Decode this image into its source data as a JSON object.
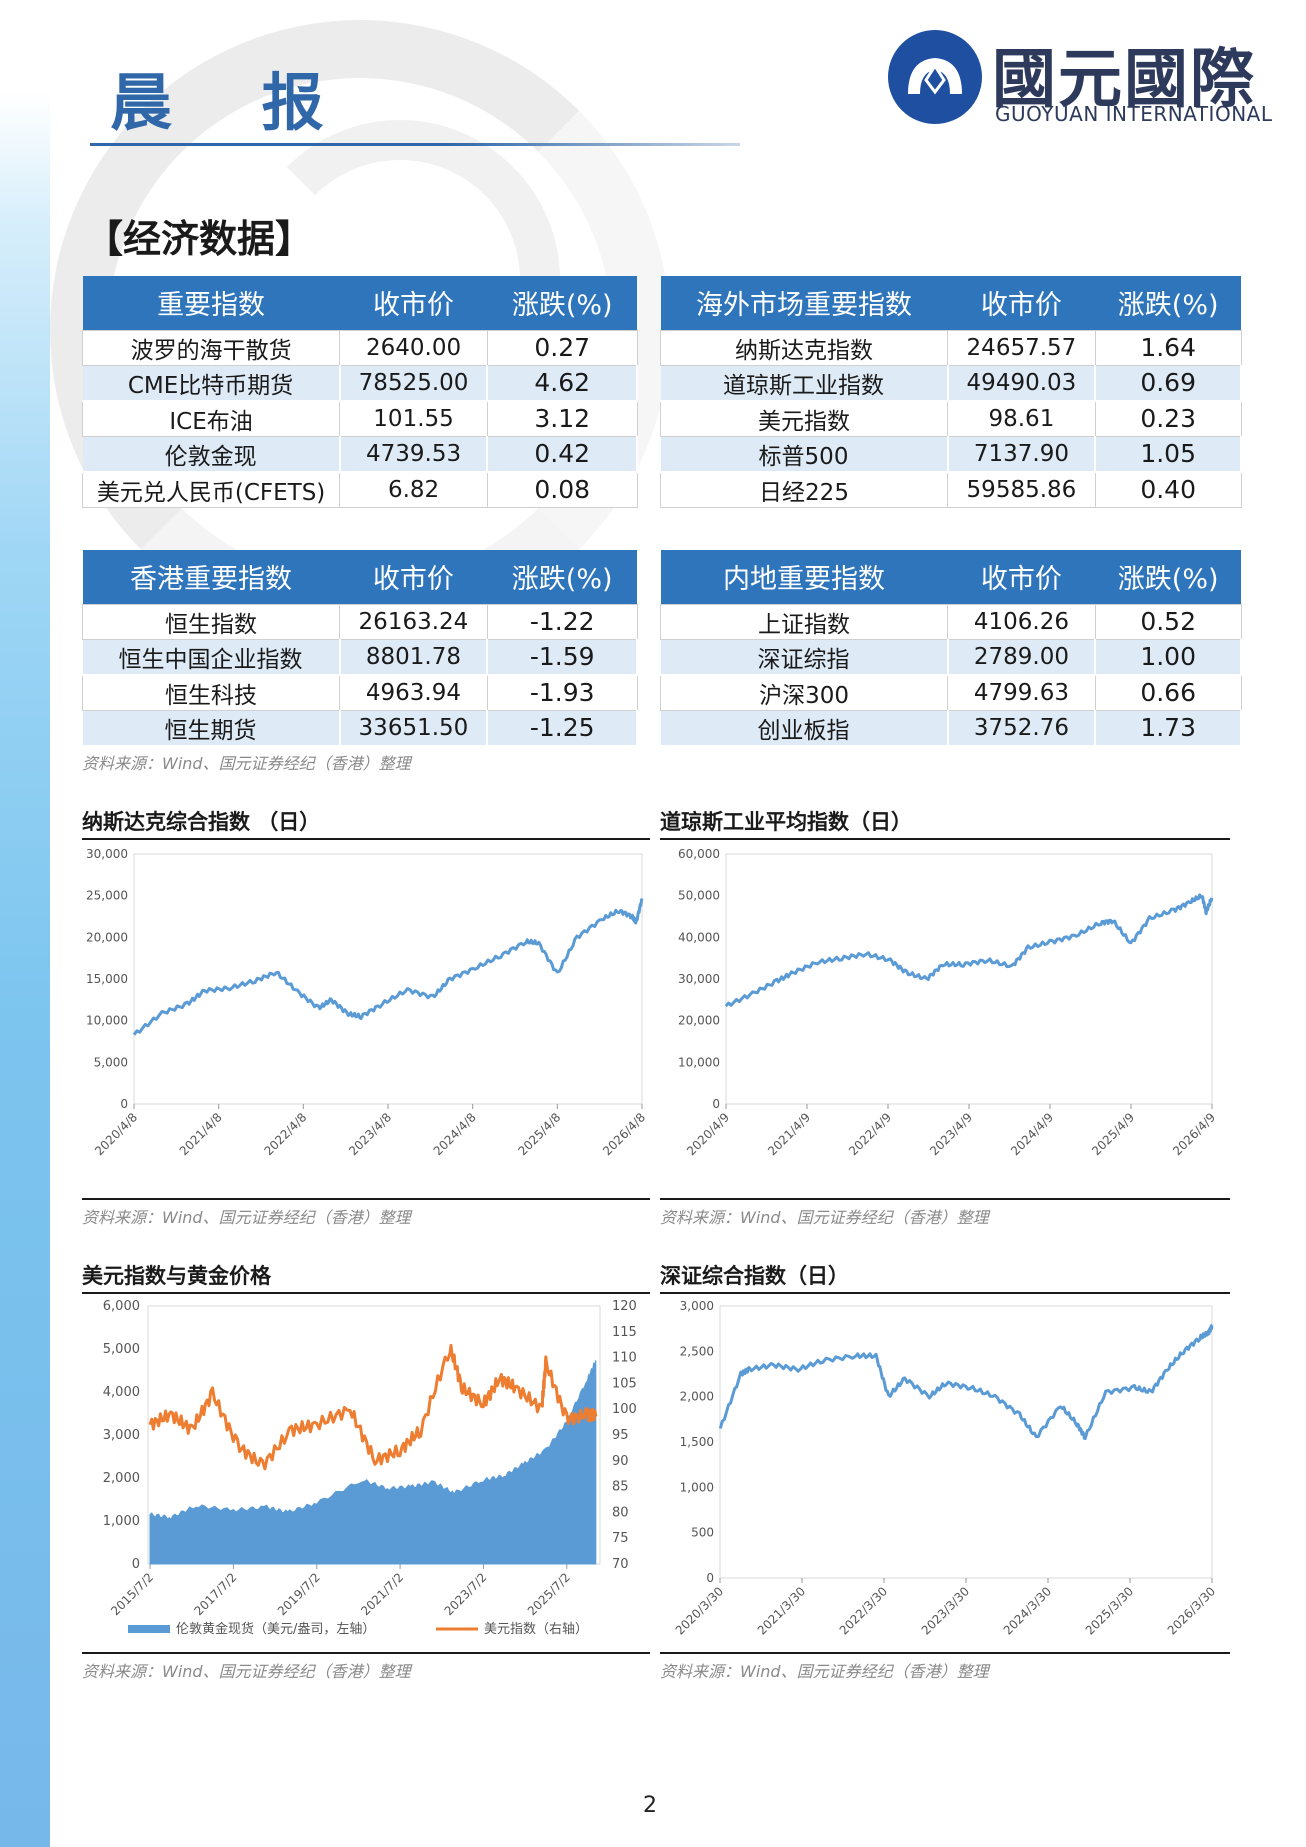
{
  "header": {
    "title": "晨 报",
    "logo_cn": "國元國際",
    "logo_en": "GUOYUAN INTERNATIONAL"
  },
  "section_title": "【经济数据】",
  "tables": [
    {
      "headers": [
        "重要指数",
        "收市价",
        "涨跌(%)"
      ],
      "rows": [
        [
          "波罗的海干散货",
          "2640.00",
          "0.27"
        ],
        [
          "CME比特币期货",
          "78525.00",
          "4.62"
        ],
        [
          "ICE布油",
          "101.55",
          "3.12"
        ],
        [
          "伦敦金现",
          "4739.53",
          "0.42"
        ],
        [
          "美元兑人民币(CFETS)",
          "6.82",
          "0.08"
        ]
      ]
    },
    {
      "headers": [
        "海外市场重要指数",
        "收市价",
        "涨跌(%)"
      ],
      "rows": [
        [
          "纳斯达克指数",
          "24657.57",
          "1.64"
        ],
        [
          "道琼斯工业指数",
          "49490.03",
          "0.69"
        ],
        [
          "美元指数",
          "98.61",
          "0.23"
        ],
        [
          "标普500",
          "7137.90",
          "1.05"
        ],
        [
          "日经225",
          "59585.86",
          "0.40"
        ]
      ]
    },
    {
      "headers": [
        "香港重要指数",
        "收市价",
        "涨跌(%)"
      ],
      "rows": [
        [
          "恒生指数",
          "26163.24",
          "-1.22"
        ],
        [
          "恒生中国企业指数",
          "8801.78",
          "-1.59"
        ],
        [
          "恒生科技",
          "4963.94",
          "-1.93"
        ],
        [
          "恒生期货",
          "33651.50",
          "-1.25"
        ]
      ]
    },
    {
      "headers": [
        "内地重要指数",
        "收市价",
        "涨跌(%)"
      ],
      "rows": [
        [
          "上证指数",
          "4106.26",
          "0.52"
        ],
        [
          "深证综指",
          "2789.00",
          "1.00"
        ],
        [
          "沪深300",
          "4799.63",
          "0.66"
        ],
        [
          "创业板指",
          "3752.76",
          "1.73"
        ]
      ]
    }
  ],
  "source_text": "资料来源：Wind、国元证券经纪（香港）整理",
  "chart_data": [
    {
      "type": "line",
      "title": "纳斯达克综合指数 （日）",
      "x_ticks": [
        "2020/4/8",
        "2021/4/8",
        "2022/4/8",
        "2023/4/8",
        "2024/4/8",
        "2025/4/8",
        "2026/4/8"
      ],
      "y_ticks": [
        "0",
        "5,000",
        "10,000",
        "15,000",
        "20,000",
        "25,000",
        "30,000"
      ],
      "ylim": [
        0,
        30000
      ],
      "color": "#5b9bd5",
      "series": [
        {
          "x": [
            2020.27,
            2020.6,
            2020.9,
            2021.1,
            2021.4,
            2021.7,
            2021.95,
            2022.2,
            2022.45,
            2022.6,
            2022.8,
            2022.95,
            2023.2,
            2023.5,
            2023.8,
            2024.0,
            2024.3,
            2024.6,
            2024.9,
            2025.05,
            2025.27,
            2025.5,
            2025.8,
            2026.0,
            2026.15,
            2026.2,
            2026.27
          ],
          "y": [
            8300,
            10900,
            12000,
            13600,
            13900,
            14800,
            15800,
            13500,
            11500,
            12500,
            10800,
            10500,
            12000,
            13700,
            12800,
            15000,
            16300,
            17800,
            19500,
            19300,
            15600,
            20000,
            22200,
            23200,
            22500,
            21800,
            24657
          ]
        }
      ]
    },
    {
      "type": "line",
      "title": "道琼斯工业平均指数（日）",
      "x_ticks": [
        "2020/4/9",
        "2021/4/9",
        "2022/4/9",
        "2023/4/9",
        "2024/4/9",
        "2025/4/9",
        "2026/4/9"
      ],
      "y_ticks": [
        "0",
        "10,000",
        "20,000",
        "30,000",
        "40,000",
        "50,000",
        "60,000"
      ],
      "ylim": [
        0,
        60000
      ],
      "color": "#5b9bd5",
      "series": [
        {
          "x": [
            2020.27,
            2020.6,
            2020.9,
            2021.1,
            2021.4,
            2021.7,
            2022.0,
            2022.3,
            2022.5,
            2022.75,
            2022.95,
            2023.2,
            2023.5,
            2023.8,
            2024.0,
            2024.3,
            2024.6,
            2024.9,
            2025.05,
            2025.27,
            2025.5,
            2025.8,
            2026.0,
            2026.15,
            2026.2,
            2026.27
          ],
          "y": [
            23500,
            26500,
            29500,
            31500,
            34000,
            35000,
            36000,
            34500,
            31500,
            30000,
            33500,
            33500,
            34500,
            33000,
            37500,
            39000,
            40500,
            43500,
            44000,
            38500,
            44500,
            46500,
            48500,
            50000,
            46000,
            49490
          ]
        }
      ]
    },
    {
      "type": "area+line",
      "title": "美元指数与黄金价格",
      "x_ticks": [
        "2015/7/2",
        "2017/7/2",
        "2019/7/2",
        "2021/7/2",
        "2023/7/2",
        "2025/7/2"
      ],
      "y_ticks": [
        "0",
        "1,000",
        "2,000",
        "3,000",
        "4,000",
        "5,000",
        "6,000"
      ],
      "y2_ticks": [
        "70",
        "75",
        "80",
        "85",
        "90",
        "95",
        "100",
        "105",
        "110",
        "115",
        "120"
      ],
      "ylim": [
        0,
        6000
      ],
      "y2lim": [
        70,
        120
      ],
      "legend": [
        "伦敦黄金现货（美元/盎司，左轴）",
        "美元指数（右轴）"
      ],
      "colors": [
        "#5b9bd5",
        "#ed7d31"
      ],
      "series": [
        {
          "name": "伦敦黄金现货（美元/盎司，左轴）",
          "x": [
            2015.5,
            2016.0,
            2016.6,
            2017.5,
            2018.3,
            2018.8,
            2019.5,
            2020.6,
            2021.2,
            2021.8,
            2022.3,
            2022.8,
            2023.5,
            2024.0,
            2024.5,
            2025.0,
            2025.5,
            2026.0,
            2026.2
          ],
          "y": [
            1150,
            1080,
            1350,
            1250,
            1320,
            1200,
            1420,
            1950,
            1750,
            1800,
            1900,
            1650,
            1950,
            2050,
            2350,
            2650,
            3300,
            4300,
            4739
          ]
        },
        {
          "name": "美元指数（右轴）",
          "x": [
            2015.5,
            2016.0,
            2016.5,
            2017.0,
            2017.6,
            2018.2,
            2018.9,
            2019.5,
            2020.3,
            2020.9,
            2021.5,
            2022.0,
            2022.7,
            2023.0,
            2023.5,
            2023.9,
            2024.3,
            2024.9,
            2025.0,
            2025.5,
            2026.0,
            2026.2
          ],
          "y": [
            97,
            99,
            96,
            103,
            93,
            89,
            96,
            97,
            100,
            90,
            92,
            96,
            112,
            104,
            101,
            106,
            104,
            100,
            109,
            98,
            99,
            98.61
          ]
        }
      ]
    },
    {
      "type": "line",
      "title": "深证综合指数（日）",
      "x_ticks": [
        "2020/3/30",
        "2021/3/30",
        "2022/3/30",
        "2023/3/30",
        "2024/3/30",
        "2025/3/30",
        "2026/3/30"
      ],
      "y_ticks": [
        "0",
        "500",
        "1,000",
        "1,500",
        "2,000",
        "2,500",
        "3,000"
      ],
      "ylim": [
        0,
        3000
      ],
      "color": "#5b9bd5",
      "series": [
        {
          "x": [
            2020.25,
            2020.5,
            2020.6,
            2020.9,
            2021.2,
            2021.5,
            2021.9,
            2022.15,
            2022.3,
            2022.5,
            2022.8,
            2023.0,
            2023.3,
            2023.6,
            2023.9,
            2024.1,
            2024.4,
            2024.6,
            2024.7,
            2024.95,
            2025.3,
            2025.5,
            2025.7,
            2025.9,
            2026.1,
            2026.2,
            2026.25
          ],
          "y": [
            1650,
            2250,
            2300,
            2350,
            2300,
            2400,
            2450,
            2450,
            2000,
            2200,
            2000,
            2150,
            2100,
            2000,
            1800,
            1550,
            1900,
            1700,
            1550,
            2050,
            2100,
            2050,
            2300,
            2500,
            2650,
            2700,
            2789
          ]
        }
      ]
    }
  ],
  "page_number": "2"
}
